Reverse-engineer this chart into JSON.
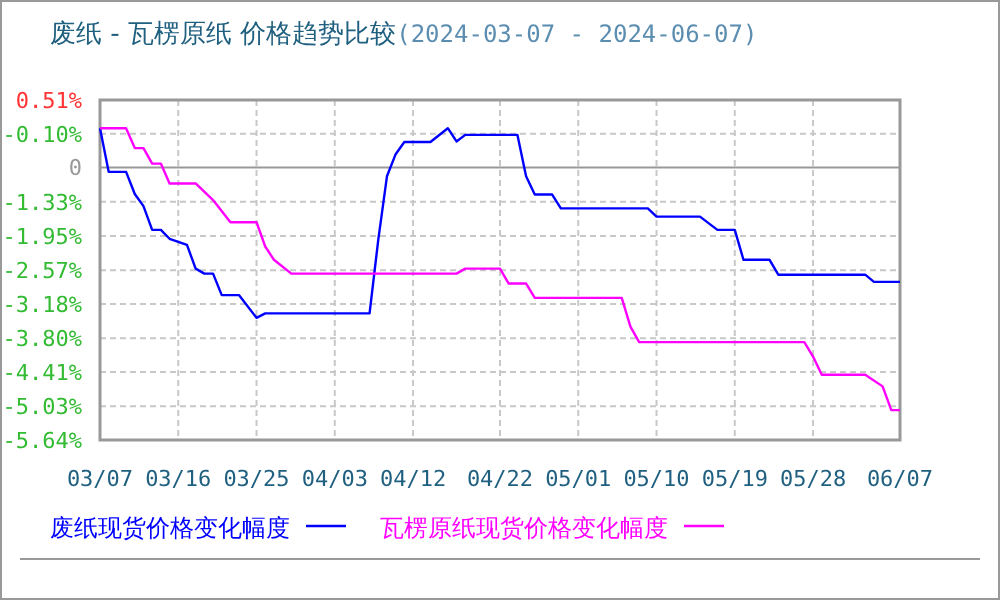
{
  "chart_data": {
    "type": "line",
    "title": "废纸 - 瓦楞原纸 价格趋势比较",
    "subtitle": "(2024-03-07 - 2024-06-07)",
    "xlim": [
      "2024-03-07",
      "2024-06-07"
    ],
    "xticks": [
      {
        "value": "2024-03-07",
        "label": "03/07"
      },
      {
        "value": "2024-03-16",
        "label": "03/16"
      },
      {
        "value": "2024-03-25",
        "label": "03/25"
      },
      {
        "value": "2024-04-03",
        "label": "04/03"
      },
      {
        "value": "2024-04-12",
        "label": "04/12"
      },
      {
        "value": "2024-04-22",
        "label": "04/22"
      },
      {
        "value": "2024-05-01",
        "label": "05/01"
      },
      {
        "value": "2024-05-10",
        "label": "05/10"
      },
      {
        "value": "2024-05-19",
        "label": "05/19"
      },
      {
        "value": "2024-05-28",
        "label": "05/28"
      },
      {
        "value": "2024-06-07",
        "label": "06/07"
      }
    ],
    "ylim": [
      -5.64,
      0.51
    ],
    "yticks": [
      {
        "value": -5.64,
        "label": "-5.64%"
      },
      {
        "value": -5.03,
        "label": "-5.03%"
      },
      {
        "value": -4.41,
        "label": "-4.41%"
      },
      {
        "value": -3.8,
        "label": "-3.80%"
      },
      {
        "value": -3.18,
        "label": "-3.18%"
      },
      {
        "value": -2.57,
        "label": "-2.57%"
      },
      {
        "value": -1.95,
        "label": "-1.95%"
      },
      {
        "value": -1.33,
        "label": "-1.33%"
      },
      {
        "value": -0.1,
        "label": "-0.10%"
      },
      {
        "value": 0.51,
        "label": "0.51%"
      }
    ],
    "ref_lines": [
      {
        "axis": "y",
        "value": -0.71,
        "color": "#999999"
      }
    ],
    "annotations": [
      "0"
    ],
    "grid": true,
    "legend": "bottom",
    "marker": "none",
    "line_style": "solid",
    "series": [
      {
        "name": "废纸现货价格变化幅度",
        "color": "#0000ff",
        "x": [
          "2024-03-07",
          "2024-03-08",
          "2024-03-10",
          "2024-03-11",
          "2024-03-12",
          "2024-03-13",
          "2024-03-14",
          "2024-03-15",
          "2024-03-17",
          "2024-03-18",
          "2024-03-19",
          "2024-03-20",
          "2024-03-21",
          "2024-03-23",
          "2024-03-25",
          "2024-03-26",
          "2024-04-07",
          "2024-04-08",
          "2024-04-09",
          "2024-04-10",
          "2024-04-11",
          "2024-04-14",
          "2024-04-16",
          "2024-04-17",
          "2024-04-18",
          "2024-04-24",
          "2024-04-25",
          "2024-04-26",
          "2024-04-28",
          "2024-04-29",
          "2024-05-09",
          "2024-05-10",
          "2024-05-15",
          "2024-05-17",
          "2024-05-19",
          "2024-05-20",
          "2024-05-23",
          "2024-05-24",
          "2024-06-03",
          "2024-06-04",
          "2024-06-07"
        ],
        "values": [
          0.0,
          -0.79,
          -0.79,
          -1.19,
          -1.41,
          -1.84,
          -1.84,
          -2.0,
          -2.11,
          -2.54,
          -2.63,
          -2.63,
          -3.02,
          -3.02,
          -3.43,
          -3.35,
          -3.35,
          -2.02,
          -0.87,
          -0.47,
          -0.25,
          -0.25,
          0.0,
          -0.24,
          -0.12,
          -0.12,
          -0.87,
          -1.2,
          -1.2,
          -1.45,
          -1.45,
          -1.6,
          -1.6,
          -1.84,
          -1.84,
          -2.38,
          -2.38,
          -2.65,
          -2.65,
          -2.78,
          -2.78
        ]
      },
      {
        "name": "瓦楞原纸现货价格变化幅度",
        "color": "#ff00ff",
        "x": [
          "2024-03-07",
          "2024-03-10",
          "2024-03-11",
          "2024-03-12",
          "2024-03-13",
          "2024-03-14",
          "2024-03-15",
          "2024-03-18",
          "2024-03-20",
          "2024-03-22",
          "2024-03-25",
          "2024-03-26",
          "2024-03-27",
          "2024-03-29",
          "2024-04-17",
          "2024-04-18",
          "2024-04-22",
          "2024-04-23",
          "2024-04-25",
          "2024-04-26",
          "2024-05-06",
          "2024-05-07",
          "2024-05-08",
          "2024-05-27",
          "2024-05-28",
          "2024-05-29",
          "2024-06-03",
          "2024-06-05",
          "2024-06-06",
          "2024-06-07"
        ],
        "values": [
          0.0,
          0.0,
          -0.36,
          -0.36,
          -0.64,
          -0.64,
          -1.0,
          -1.0,
          -1.3,
          -1.7,
          -1.7,
          -2.14,
          -2.38,
          -2.63,
          -2.63,
          -2.54,
          -2.54,
          -2.81,
          -2.81,
          -3.07,
          -3.07,
          -3.59,
          -3.87,
          -3.87,
          -4.13,
          -4.46,
          -4.46,
          -4.67,
          -5.1,
          -5.1
        ]
      }
    ]
  }
}
